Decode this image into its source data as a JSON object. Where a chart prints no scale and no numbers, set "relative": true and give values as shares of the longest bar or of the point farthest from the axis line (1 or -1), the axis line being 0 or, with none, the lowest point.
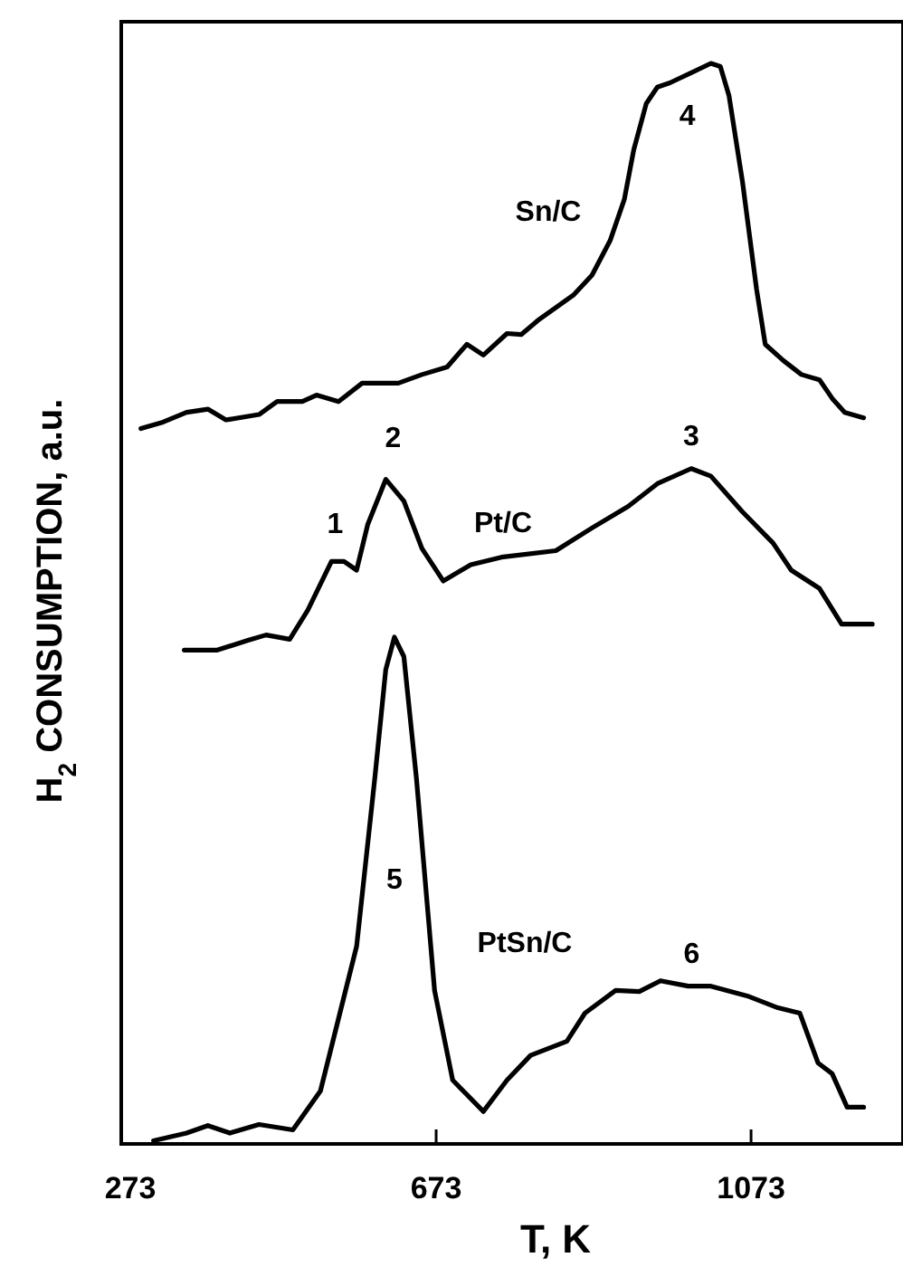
{
  "chart_data": {
    "type": "line",
    "relative": true,
    "xlabel": "T, K",
    "ylabel": "H$_{2}$ CONSUMPTION, a.u.",
    "xlim": [
      273,
      1266
    ],
    "xticks": [
      273,
      673,
      1073
    ],
    "grid": false,
    "marker": "none",
    "line_style": "solid",
    "series": [
      {
        "name": "Sn/C",
        "color": "#000000",
        "x": [
          298,
          326,
          356,
          383,
          406,
          448,
          471,
          503,
          521,
          549,
          579,
          625,
          655,
          687,
          712,
          733,
          763,
          781,
          802,
          825,
          848,
          871,
          894,
          912,
          924,
          940,
          954,
          970,
          1022,
          1034,
          1045,
          1062,
          1080,
          1091,
          1114,
          1137,
          1160,
          1176,
          1192,
          1216
        ],
        "values": [
          0.662,
          0.668,
          0.677,
          0.68,
          0.67,
          0.675,
          0.687,
          0.687,
          0.693,
          0.687,
          0.704,
          0.704,
          0.712,
          0.719,
          0.74,
          0.73,
          0.75,
          0.749,
          0.762,
          0.774,
          0.786,
          0.804,
          0.836,
          0.874,
          0.92,
          0.963,
          0.978,
          0.982,
          1.0,
          0.997,
          0.97,
          0.891,
          0.791,
          0.74,
          0.725,
          0.712,
          0.707,
          0.69,
          0.677,
          0.672
        ]
      },
      {
        "name": "Pt/C",
        "color": "#000000",
        "x": [
          353,
          395,
          434,
          457,
          487,
          510,
          540,
          556,
          572,
          586,
          609,
          632,
          655,
          682,
          717,
          756,
          825,
          871,
          917,
          954,
          997,
          1022,
          1062,
          1101,
          1124,
          1160,
          1188,
          1227
        ],
        "values": [
          0.457,
          0.457,
          0.466,
          0.471,
          0.467,
          0.494,
          0.539,
          0.539,
          0.531,
          0.573,
          0.615,
          0.595,
          0.551,
          0.521,
          0.536,
          0.543,
          0.549,
          0.57,
          0.59,
          0.611,
          0.625,
          0.618,
          0.585,
          0.556,
          0.531,
          0.514,
          0.481,
          0.481
        ]
      },
      {
        "name": "PtSn/C",
        "color": "#000000",
        "x": [
          314,
          356,
          383,
          411,
          448,
          491,
          526,
          549,
          572,
          595,
          609,
          620,
          632,
          648,
          671,
          694,
          733,
          763,
          793,
          839,
          862,
          901,
          931,
          958,
          993,
          1022,
          1068,
          1107,
          1135,
          1158,
          1176,
          1195,
          1216
        ],
        "values": [
          0.003,
          0.01,
          0.017,
          0.01,
          0.018,
          0.013,
          0.049,
          0.116,
          0.183,
          0.338,
          0.439,
          0.469,
          0.451,
          0.338,
          0.142,
          0.059,
          0.03,
          0.059,
          0.082,
          0.095,
          0.121,
          0.142,
          0.141,
          0.151,
          0.146,
          0.146,
          0.137,
          0.126,
          0.121,
          0.075,
          0.065,
          0.034,
          0.034
        ]
      }
    ],
    "annotations": [
      {
        "text": "1",
        "x": 540,
        "y": 0.539
      },
      {
        "text": "2",
        "x": 609,
        "y": 0.615
      },
      {
        "text": "3",
        "x": 997,
        "y": 0.625
      },
      {
        "text": "4",
        "x": 1022,
        "y": 1.0
      },
      "5",
      {
        "text": "6",
        "x": 993,
        "y": 0.146
      }
    ]
  }
}
